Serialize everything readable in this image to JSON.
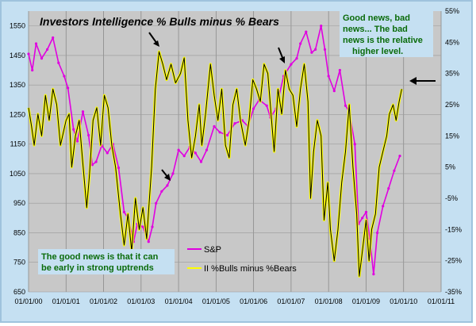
{
  "chart_data": {
    "type": "line",
    "title": "Investors Intelligence % Bulls minus % Bears",
    "x_tick_labels": [
      "01/01/00",
      "01/01/01",
      "01/01/02",
      "01/01/03",
      "01/01/04",
      "01/01/05",
      "01/01/06",
      "01/01/07",
      "01/01/08",
      "01/01/09",
      "01/01/10",
      "01/01/11"
    ],
    "y_left": {
      "ticks": [
        650,
        750,
        850,
        950,
        1050,
        1150,
        1250,
        1350,
        1450,
        1550
      ],
      "ylim": [
        650,
        1600
      ]
    },
    "y_right": {
      "tick_labels": [
        "-35%",
        "-25%",
        "-15%",
        "-5%",
        "5%",
        "15%",
        "25%",
        "35%",
        "45%",
        "55%"
      ],
      "ylim": [
        -35,
        55
      ]
    },
    "legend": [
      "S&P",
      "II %Bulls minus %Bears"
    ],
    "series": [
      {
        "name": "S&P",
        "axis": "left",
        "color": "#e000e0",
        "points": [
          [
            2000.0,
            1455
          ],
          [
            2000.1,
            1400
          ],
          [
            2000.2,
            1490
          ],
          [
            2000.35,
            1440
          ],
          [
            2000.5,
            1470
          ],
          [
            2000.65,
            1510
          ],
          [
            2000.8,
            1425
          ],
          [
            2000.95,
            1380
          ],
          [
            2001.05,
            1340
          ],
          [
            2001.2,
            1200
          ],
          [
            2001.3,
            1160
          ],
          [
            2001.45,
            1260
          ],
          [
            2001.6,
            1180
          ],
          [
            2001.7,
            1080
          ],
          [
            2001.8,
            1090
          ],
          [
            2001.95,
            1145
          ],
          [
            2002.1,
            1120
          ],
          [
            2002.25,
            1150
          ],
          [
            2002.4,
            1070
          ],
          [
            2002.55,
            920
          ],
          [
            2002.65,
            900
          ],
          [
            2002.8,
            820
          ],
          [
            2002.9,
            880
          ],
          [
            2003.05,
            870
          ],
          [
            2003.2,
            820
          ],
          [
            2003.3,
            870
          ],
          [
            2003.4,
            950
          ],
          [
            2003.55,
            990
          ],
          [
            2003.7,
            1010
          ],
          [
            2003.85,
            1050
          ],
          [
            2004.0,
            1130
          ],
          [
            2004.15,
            1110
          ],
          [
            2004.3,
            1140
          ],
          [
            2004.45,
            1120
          ],
          [
            2004.6,
            1090
          ],
          [
            2004.75,
            1130
          ],
          [
            2004.95,
            1210
          ],
          [
            2005.1,
            1190
          ],
          [
            2005.3,
            1180
          ],
          [
            2005.5,
            1220
          ],
          [
            2005.7,
            1230
          ],
          [
            2005.85,
            1210
          ],
          [
            2006.0,
            1270
          ],
          [
            2006.15,
            1300
          ],
          [
            2006.35,
            1280
          ],
          [
            2006.45,
            1240
          ],
          [
            2006.6,
            1270
          ],
          [
            2006.8,
            1380
          ],
          [
            2007.0,
            1420
          ],
          [
            2007.15,
            1440
          ],
          [
            2007.25,
            1490
          ],
          [
            2007.4,
            1530
          ],
          [
            2007.55,
            1460
          ],
          [
            2007.65,
            1470
          ],
          [
            2007.8,
            1550
          ],
          [
            2007.9,
            1470
          ],
          [
            2008.0,
            1380
          ],
          [
            2008.15,
            1330
          ],
          [
            2008.3,
            1400
          ],
          [
            2008.45,
            1280
          ],
          [
            2008.55,
            1260
          ],
          [
            2008.7,
            1150
          ],
          [
            2008.8,
            880
          ],
          [
            2008.9,
            900
          ],
          [
            2009.0,
            920
          ],
          [
            2009.1,
            830
          ],
          [
            2009.2,
            710
          ],
          [
            2009.3,
            850
          ],
          [
            2009.45,
            940
          ],
          [
            2009.6,
            1000
          ],
          [
            2009.75,
            1060
          ],
          [
            2009.9,
            1110
          ]
        ]
      },
      {
        "name": "II %Bulls minus %Bears",
        "axis": "right",
        "color": "#ffff00",
        "points": [
          [
            2000.0,
            24
          ],
          [
            2000.08,
            18
          ],
          [
            2000.15,
            12
          ],
          [
            2000.25,
            22
          ],
          [
            2000.35,
            15
          ],
          [
            2000.45,
            28
          ],
          [
            2000.55,
            20
          ],
          [
            2000.65,
            30
          ],
          [
            2000.75,
            25
          ],
          [
            2000.85,
            12
          ],
          [
            2001.0,
            20
          ],
          [
            2001.08,
            22
          ],
          [
            2001.15,
            5
          ],
          [
            2001.25,
            15
          ],
          [
            2001.35,
            20
          ],
          [
            2001.45,
            6
          ],
          [
            2001.55,
            -8
          ],
          [
            2001.62,
            2
          ],
          [
            2001.72,
            20
          ],
          [
            2001.82,
            24
          ],
          [
            2001.92,
            12
          ],
          [
            2002.02,
            28
          ],
          [
            2002.12,
            24
          ],
          [
            2002.22,
            12
          ],
          [
            2002.32,
            5
          ],
          [
            2002.45,
            -10
          ],
          [
            2002.55,
            -20
          ],
          [
            2002.65,
            -10
          ],
          [
            2002.75,
            -22
          ],
          [
            2002.85,
            -5
          ],
          [
            2002.95,
            -15
          ],
          [
            2003.05,
            -8
          ],
          [
            2003.15,
            -18
          ],
          [
            2003.28,
            5
          ],
          [
            2003.38,
            30
          ],
          [
            2003.48,
            42
          ],
          [
            2003.58,
            38
          ],
          [
            2003.68,
            33
          ],
          [
            2003.8,
            38
          ],
          [
            2003.92,
            32
          ],
          [
            2004.05,
            35
          ],
          [
            2004.15,
            40
          ],
          [
            2004.25,
            20
          ],
          [
            2004.35,
            8
          ],
          [
            2004.45,
            15
          ],
          [
            2004.55,
            25
          ],
          [
            2004.62,
            12
          ],
          [
            2004.72,
            22
          ],
          [
            2004.85,
            38
          ],
          [
            2004.95,
            28
          ],
          [
            2005.05,
            20
          ],
          [
            2005.15,
            30
          ],
          [
            2005.25,
            12
          ],
          [
            2005.35,
            8
          ],
          [
            2005.45,
            25
          ],
          [
            2005.55,
            30
          ],
          [
            2005.65,
            20
          ],
          [
            2005.78,
            12
          ],
          [
            2005.88,
            20
          ],
          [
            2005.98,
            33
          ],
          [
            2006.08,
            30
          ],
          [
            2006.18,
            26
          ],
          [
            2006.28,
            38
          ],
          [
            2006.38,
            35
          ],
          [
            2006.48,
            20
          ],
          [
            2006.55,
            10
          ],
          [
            2006.65,
            30
          ],
          [
            2006.75,
            22
          ],
          [
            2006.85,
            36
          ],
          [
            2006.95,
            30
          ],
          [
            2007.05,
            28
          ],
          [
            2007.15,
            18
          ],
          [
            2007.25,
            30
          ],
          [
            2007.35,
            38
          ],
          [
            2007.45,
            26
          ],
          [
            2007.52,
            -5
          ],
          [
            2007.6,
            10
          ],
          [
            2007.7,
            20
          ],
          [
            2007.8,
            15
          ],
          [
            2007.88,
            -12
          ],
          [
            2007.98,
            0
          ],
          [
            2008.05,
            -15
          ],
          [
            2008.15,
            -25
          ],
          [
            2008.25,
            -15
          ],
          [
            2008.35,
            0
          ],
          [
            2008.45,
            10
          ],
          [
            2008.55,
            25
          ],
          [
            2008.65,
            5
          ],
          [
            2008.75,
            -10
          ],
          [
            2008.82,
            -30
          ],
          [
            2008.92,
            -20
          ],
          [
            2009.0,
            -12
          ],
          [
            2009.08,
            -25
          ],
          [
            2009.15,
            -15
          ],
          [
            2009.25,
            -10
          ],
          [
            2009.35,
            5
          ],
          [
            2009.45,
            10
          ],
          [
            2009.55,
            15
          ],
          [
            2009.62,
            22
          ],
          [
            2009.72,
            25
          ],
          [
            2009.8,
            20
          ],
          [
            2009.88,
            26
          ],
          [
            2009.95,
            30
          ]
        ]
      }
    ],
    "annotations": [
      {
        "id": "top-right",
        "lines": [
          "Good news, bad",
          "news...    The bad",
          "news is the relative",
          "higher level."
        ]
      },
      {
        "id": "bottom-left",
        "lines": [
          "The good news is that it can",
          "be early in strong uptrends"
        ]
      }
    ]
  }
}
